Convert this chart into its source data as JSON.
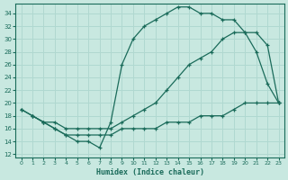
{
  "bg_color": "#c8e8e0",
  "grid_color": "#b0d8d0",
  "line_color": "#1a6b5a",
  "xlabel": "Humidex (Indice chaleur)",
  "xlim": [
    -0.5,
    23.5
  ],
  "ylim": [
    11.5,
    35.5
  ],
  "xticks": [
    0,
    1,
    2,
    3,
    4,
    5,
    6,
    7,
    8,
    9,
    10,
    11,
    12,
    13,
    14,
    15,
    16,
    17,
    18,
    19,
    20,
    21,
    22,
    23
  ],
  "yticks": [
    12,
    14,
    16,
    18,
    20,
    22,
    24,
    26,
    28,
    30,
    32,
    34
  ],
  "curve1_x": [
    0,
    1,
    2,
    3,
    4,
    5,
    6,
    7,
    8,
    9,
    10,
    11,
    12,
    13,
    14,
    15,
    16,
    17,
    18,
    19,
    20,
    21,
    22,
    23
  ],
  "curve1_y": [
    19,
    18,
    17,
    16,
    15,
    14,
    14,
    13,
    17,
    26,
    30,
    32,
    33,
    34,
    35,
    35,
    34,
    34,
    33,
    33,
    31,
    28,
    23,
    20
  ],
  "curve2_x": [
    0,
    1,
    2,
    3,
    4,
    5,
    6,
    7,
    8,
    9,
    10,
    11,
    12,
    13,
    14,
    15,
    16,
    17,
    18,
    19,
    20,
    21,
    22,
    23
  ],
  "curve2_y": [
    19,
    18,
    17,
    17,
    16,
    16,
    16,
    16,
    16,
    17,
    18,
    19,
    20,
    22,
    24,
    26,
    27,
    28,
    30,
    31,
    31,
    31,
    29,
    20
  ],
  "curve3_x": [
    1,
    2,
    3,
    4,
    5,
    6,
    7,
    8,
    9,
    10,
    11,
    12,
    13,
    14,
    15,
    16,
    17,
    18,
    19,
    20,
    21,
    22,
    23
  ],
  "curve3_y": [
    18,
    17,
    16,
    15,
    15,
    15,
    15,
    15,
    16,
    16,
    16,
    16,
    17,
    17,
    17,
    18,
    18,
    18,
    19,
    20,
    20,
    20,
    20
  ]
}
